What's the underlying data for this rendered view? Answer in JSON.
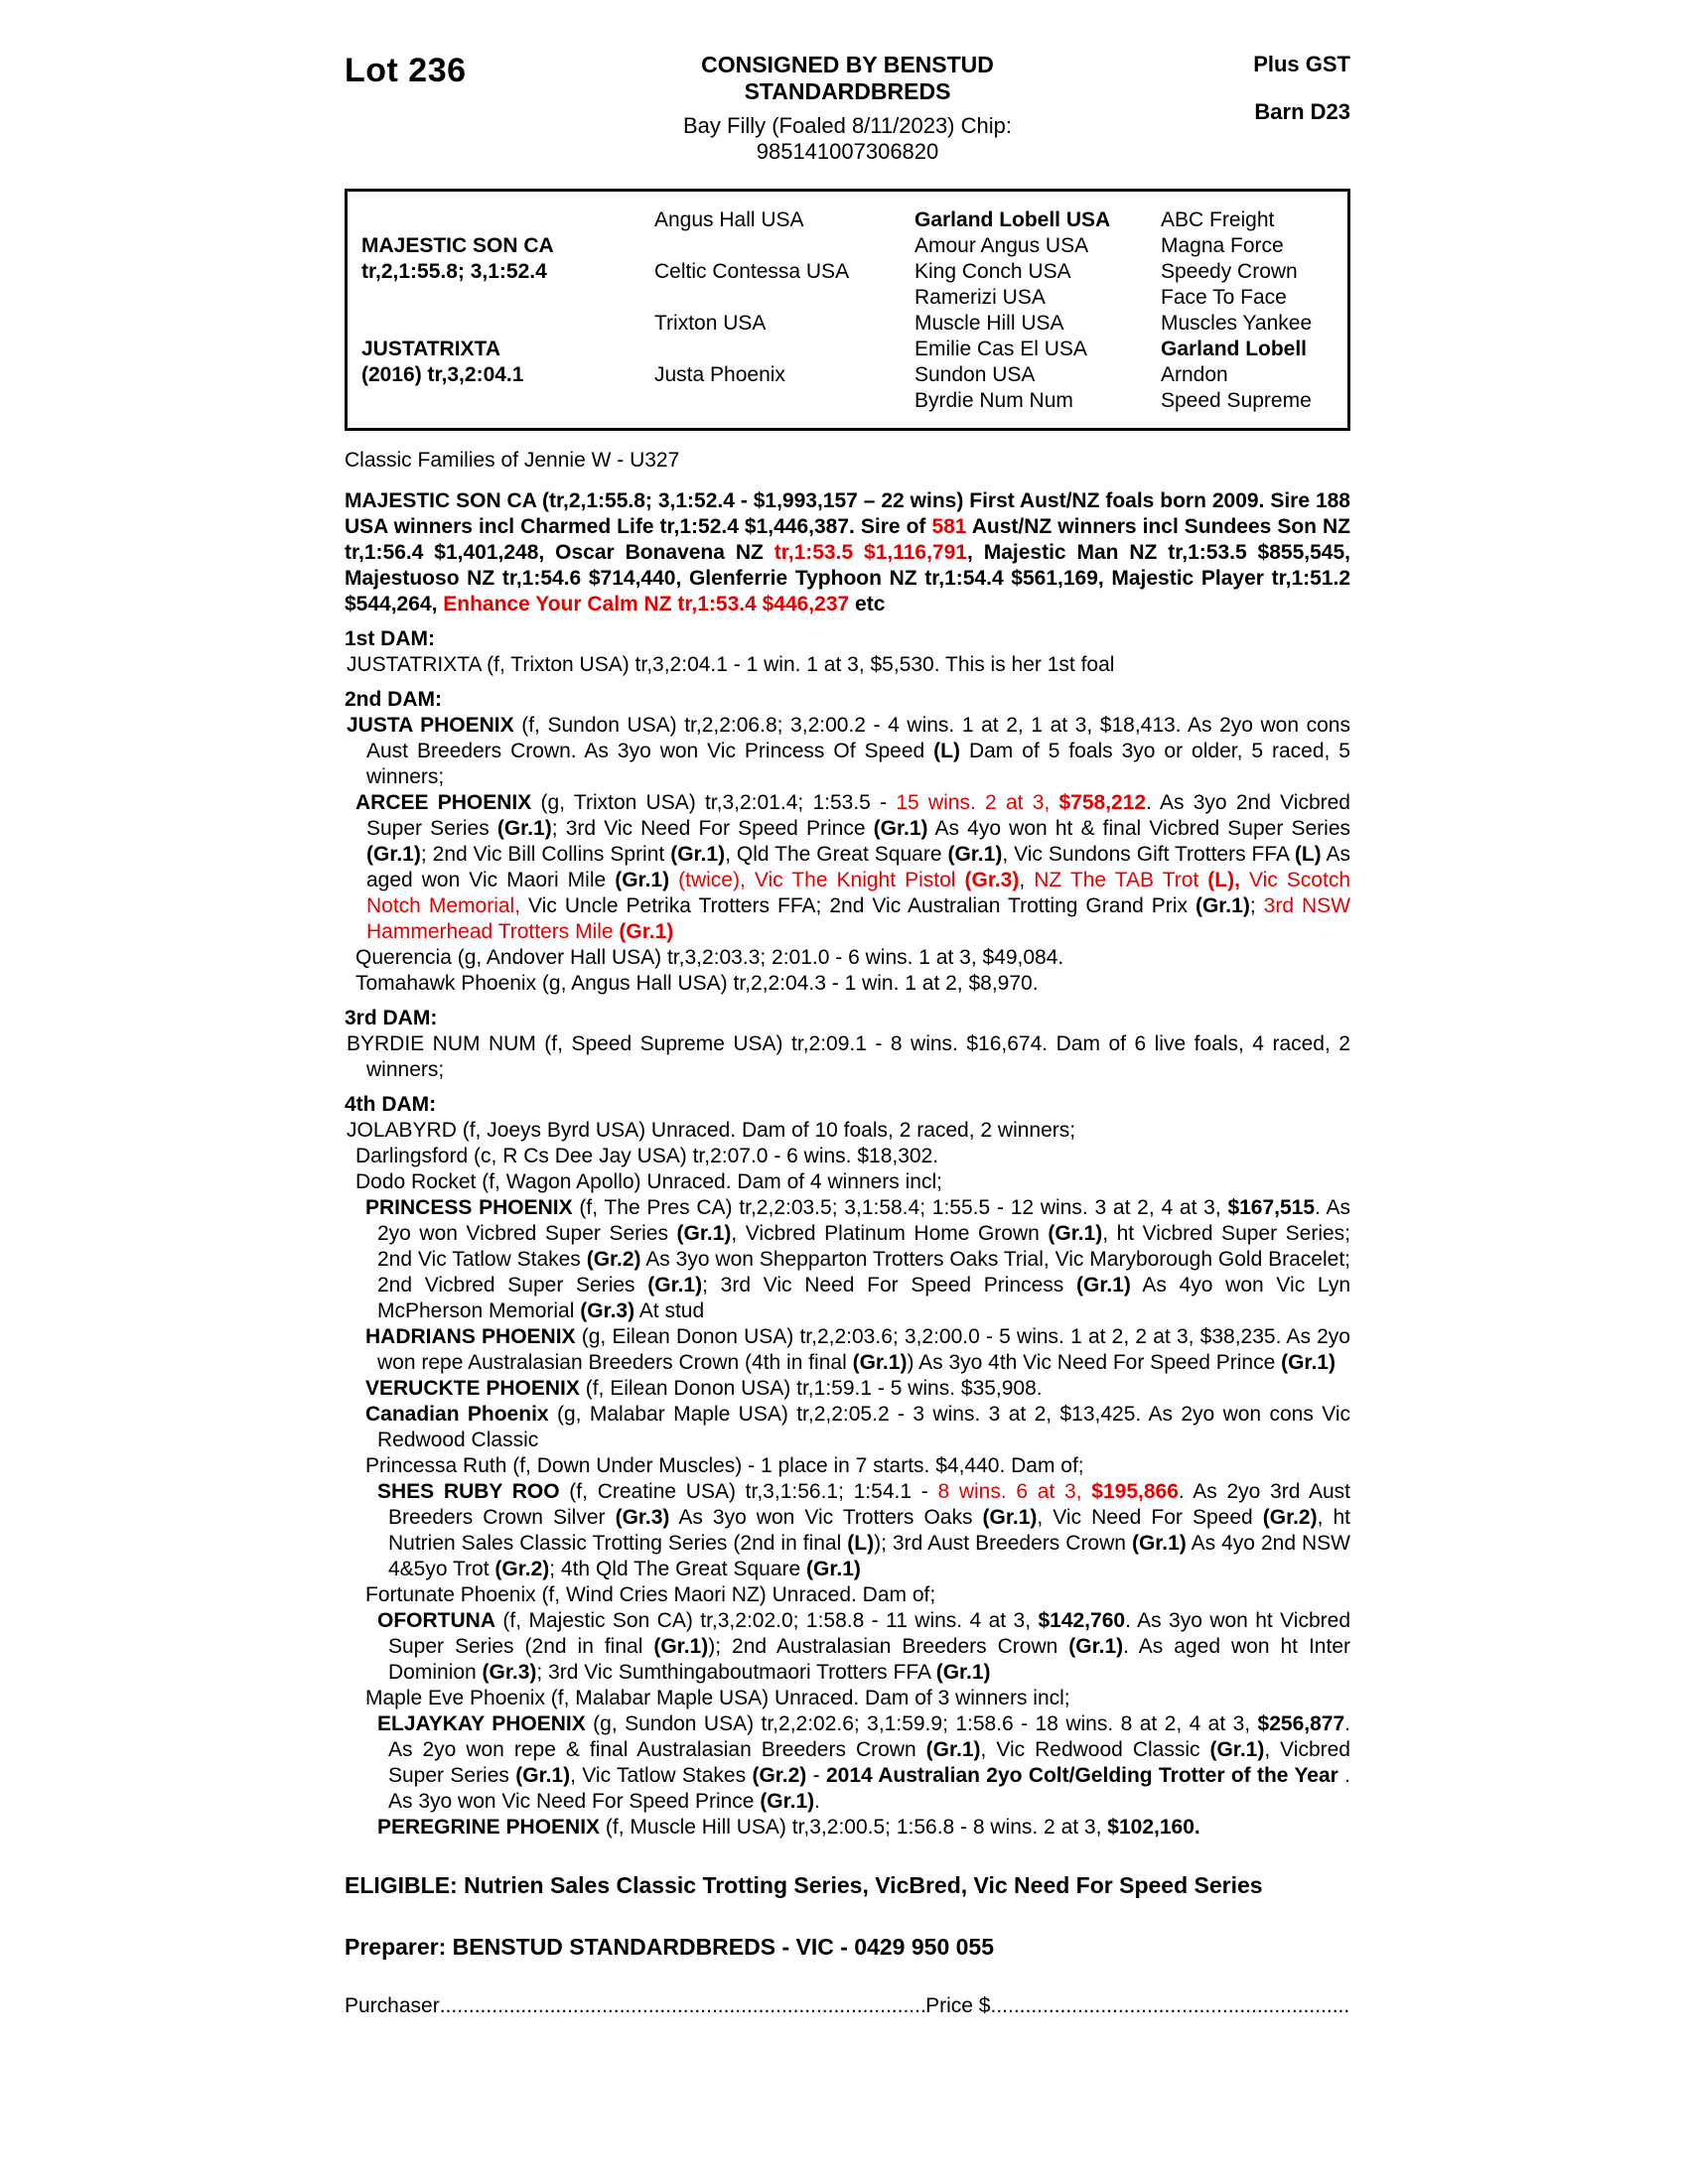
{
  "colors": {
    "red": "#e60000"
  },
  "header": {
    "lot": "Lot 236",
    "consigned": "CONSIGNED BY BENSTUD STANDARDBREDS",
    "foal_line": "Bay Filly (Foaled 8/11/2023) Chip: 985141007306820",
    "plus_gst": "Plus GST",
    "barn": "Barn D23"
  },
  "pedigree": {
    "sire": {
      "name": "MAJESTIC SON CA",
      "record": "tr,2,1:55.8; 3,1:52.4"
    },
    "dam": {
      "name": "JUSTATRIXTA",
      "record": "(2016) tr,3,2:04.1"
    },
    "gen2": [
      "Angus Hall USA",
      "Celtic Contessa USA",
      "Trixton USA",
      "Justa Phoenix"
    ],
    "gen3": [
      "Garland Lobell USA",
      "Amour Angus USA",
      "King Conch USA",
      "Ramerizi USA",
      "Muscle Hill USA",
      "Emilie Cas El USA",
      "Sundon USA",
      "Byrdie Num Num"
    ],
    "gen4": [
      "ABC Freight",
      "Magna Force",
      "Speedy Crown",
      "Face To Face",
      "Muscles Yankee",
      "Garland Lobell",
      "Arndon",
      "Speed Supreme"
    ]
  },
  "family_line": "Classic Families of Jennie W - U327",
  "paragraphs": [
    {
      "name": "para-majestic-son",
      "spans": [
        {
          "t": "MAJESTIC SON CA (tr,2,1:55.8; 3,1:52.4 - $1,993,157 – 22 wins) First Aust/NZ foals born 2009. Sire 188 USA winners incl Charmed Life tr,1:52.4 $1,446,387. Sire of ",
          "b": true
        },
        {
          "t": "581",
          "b": true,
          "r": true
        },
        {
          "t": " Aust/NZ winners incl Sundees Son NZ tr,1:56.4 $1,401,248, Oscar Bonavena NZ ",
          "b": true
        },
        {
          "t": "tr,1:53.5 $1,116,791",
          "b": true,
          "r": true
        },
        {
          "t": ", Majestic Man NZ tr,1:53.5 $855,545, Majestuoso NZ tr,1:54.6 $714,440, Glenferrie Typhoon NZ tr,1:54.4 $561,169, Majestic Player tr,1:51.2 $544,264, ",
          "b": true
        },
        {
          "t": "Enhance Your Calm NZ tr,1:53.4 $446,237",
          "b": true,
          "r": true
        },
        {
          "t": " etc",
          "b": true
        }
      ]
    },
    {
      "name": "heading-1st-dam",
      "spans": [
        {
          "t": "1st DAM:",
          "b": true
        }
      ]
    },
    {
      "name": "para-justatrixta",
      "spans": [
        {
          "t": "JUSTATRIXTA (f, Trixton USA) tr,3,2:04.1 - 1 win. 1 at 3, $5,530. This is her 1st foal"
        }
      ]
    },
    {
      "name": "heading-2nd-dam",
      "spans": [
        {
          "t": "2nd DAM:",
          "b": true
        }
      ]
    },
    {
      "name": "para-justa-phoenix",
      "spans": [
        {
          "t": "JUSTA PHOENIX",
          "b": true
        },
        {
          "t": " (f, Sundon USA) tr,2,2:06.8; 3,2:00.2 - 4 wins. 1 at 2, 1 at 3, $18,413. As 2yo won cons Aust Breeders Crown. As 3yo won Vic Princess Of Speed "
        },
        {
          "t": "(L)",
          "b": true
        },
        {
          "t": " Dam of 5 foals 3yo or older, 5 raced, 5 winners;"
        }
      ]
    },
    {
      "name": "para-arcee-phoenix",
      "spans": [
        {
          "t": "ARCEE PHOENIX",
          "b": true
        },
        {
          "t": " (g, Trixton USA) tr,3,2:01.4; 1:53.5 - "
        },
        {
          "t": "15 wins. 2 at 3, ",
          "r": true
        },
        {
          "t": "$758,212",
          "b": true,
          "r": true
        },
        {
          "t": ". As 3yo 2nd Vicbred Super Series "
        },
        {
          "t": "(Gr.1)",
          "b": true
        },
        {
          "t": "; 3rd Vic Need For Speed Prince "
        },
        {
          "t": "(Gr.1)",
          "b": true
        },
        {
          "t": " As 4yo won ht & final Vicbred Super Series "
        },
        {
          "t": "(Gr.1)",
          "b": true
        },
        {
          "t": "; 2nd Vic Bill Collins Sprint "
        },
        {
          "t": "(Gr.1)",
          "b": true
        },
        {
          "t": ", Qld The Great Square "
        },
        {
          "t": "(Gr.1)",
          "b": true
        },
        {
          "t": ", Vic Sundons Gift Trotters FFA "
        },
        {
          "t": "(L)",
          "b": true
        },
        {
          "t": " As aged won Vic Maori Mile "
        },
        {
          "t": "(Gr.1)",
          "b": true
        },
        {
          "t": " "
        },
        {
          "t": "(twice),",
          "r": true
        },
        {
          "t": " "
        },
        {
          "t": "Vic The Knight Pistol ",
          "r": true
        },
        {
          "t": "(Gr.3)",
          "b": true,
          "r": true
        },
        {
          "t": ", "
        },
        {
          "t": "NZ The TAB Trot ",
          "r": true
        },
        {
          "t": "(L),",
          "b": true,
          "r": true
        },
        {
          "t": " "
        },
        {
          "t": "Vic Scotch Notch Memorial,",
          "r": true
        },
        {
          "t": " Vic Uncle Petrika Trotters FFA; 2nd Vic Australian Trotting Grand Prix "
        },
        {
          "t": "(Gr.1)",
          "b": true
        },
        {
          "t": "; "
        },
        {
          "t": "3rd NSW Hammerhead Trotters Mile ",
          "r": true
        },
        {
          "t": "(Gr.1)",
          "b": true,
          "r": true
        }
      ]
    },
    {
      "name": "para-querencia",
      "spans": [
        {
          "t": "Querencia (g, Andover Hall USA) tr,3,2:03.3; 2:01.0 - 6 wins. 1 at 3, $49,084."
        }
      ]
    },
    {
      "name": "para-tomahawk-phoenix",
      "spans": [
        {
          "t": "Tomahawk Phoenix (g, Angus Hall USA) tr,2,2:04.3 - 1 win. 1 at 2, $8,970."
        }
      ]
    },
    {
      "name": "heading-3rd-dam",
      "spans": [
        {
          "t": "3rd DAM:",
          "b": true
        }
      ]
    },
    {
      "name": "para-byrdie-num-num",
      "spans": [
        {
          "t": "BYRDIE NUM NUM (f, Speed Supreme USA) tr,2:09.1 - 8 wins. $16,674. Dam of 6 live foals, 4 raced, 2 winners;"
        }
      ]
    },
    {
      "name": "heading-4th-dam",
      "spans": [
        {
          "t": "4th DAM:",
          "b": true
        }
      ]
    },
    {
      "name": "para-jolabyrd",
      "spans": [
        {
          "t": "JOLABYRD (f, Joeys Byrd USA) Unraced. Dam of 10 foals, 2 raced, 2 winners;"
        }
      ]
    },
    {
      "name": "para-darlingsford",
      "spans": [
        {
          "t": "Darlingsford (c, R Cs Dee Jay USA) tr,2:07.0 - 6 wins. $18,302."
        }
      ]
    },
    {
      "name": "para-dodo-rocket",
      "spans": [
        {
          "t": "Dodo Rocket (f, Wagon Apollo) Unraced. Dam of 4 winners incl;"
        }
      ]
    },
    {
      "name": "para-princess-phoenix",
      "spans": [
        {
          "t": "PRINCESS PHOENIX",
          "b": true
        },
        {
          "t": " (f, The Pres CA) tr,2,2:03.5; 3,1:58.4; 1:55.5 - 12 wins. 3 at 2, 4 at 3, "
        },
        {
          "t": "$167,515",
          "b": true
        },
        {
          "t": ". As 2yo won Vicbred Super Series "
        },
        {
          "t": "(Gr.1)",
          "b": true
        },
        {
          "t": ", Vicbred Platinum Home Grown "
        },
        {
          "t": "(Gr.1)",
          "b": true
        },
        {
          "t": ", ht Vicbred Super Series; 2nd Vic Tatlow Stakes "
        },
        {
          "t": "(Gr.2)",
          "b": true
        },
        {
          "t": " As 3yo won Shepparton Trotters Oaks Trial, Vic Maryborough Gold Bracelet; 2nd Vicbred Super Series "
        },
        {
          "t": "(Gr.1)",
          "b": true
        },
        {
          "t": "; 3rd Vic Need For Speed Princess "
        },
        {
          "t": "(Gr.1)",
          "b": true
        },
        {
          "t": " As 4yo won Vic Lyn McPherson Memorial "
        },
        {
          "t": "(Gr.3)",
          "b": true
        },
        {
          "t": " At stud"
        }
      ]
    },
    {
      "name": "para-hadrians-phoenix",
      "spans": [
        {
          "t": "HADRIANS PHOENIX",
          "b": true
        },
        {
          "t": " (g, Eilean Donon USA) tr,2,2:03.6; 3,2:00.0 - 5 wins. 1 at 2, 2 at 3, $38,235. As 2yo won repe Australasian Breeders Crown (4th in final "
        },
        {
          "t": "(Gr.1)",
          "b": true
        },
        {
          "t": ") As 3yo 4th Vic Need For Speed Prince "
        },
        {
          "t": "(Gr.1)",
          "b": true
        }
      ]
    },
    {
      "name": "para-veruckte-phoenix",
      "spans": [
        {
          "t": "VERUCKTE PHOENIX",
          "b": true
        },
        {
          "t": " (f, Eilean Donon USA) tr,1:59.1 - 5 wins. $35,908."
        }
      ]
    },
    {
      "name": "para-canadian-phoenix",
      "spans": [
        {
          "t": "Canadian Phoenix",
          "b": true
        },
        {
          "t": " (g, Malabar Maple USA) tr,2,2:05.2 - 3 wins. 3 at 2, $13,425. As 2yo won cons Vic Redwood Classic"
        }
      ]
    },
    {
      "name": "para-princessa-ruth",
      "spans": [
        {
          "t": "Princessa Ruth (f, Down Under Muscles) - 1 place in 7 starts. $4,440. Dam of;"
        }
      ]
    },
    {
      "name": "para-shes-ruby-roo",
      "spans": [
        {
          "t": "SHES RUBY ROO",
          "b": true
        },
        {
          "t": " (f, Creatine USA) tr,3,1:56.1; 1:54.1 - "
        },
        {
          "t": "8 wins. 6 at 3, ",
          "r": true
        },
        {
          "t": "$195,866",
          "b": true,
          "r": true
        },
        {
          "t": ". As 2yo 3rd Aust Breeders Crown Silver "
        },
        {
          "t": "(Gr.3)",
          "b": true
        },
        {
          "t": " As 3yo won Vic Trotters Oaks "
        },
        {
          "t": "(Gr.1)",
          "b": true
        },
        {
          "t": ", Vic Need For Speed "
        },
        {
          "t": "(Gr.2)",
          "b": true
        },
        {
          "t": ", ht Nutrien Sales Classic Trotting Series (2nd in final "
        },
        {
          "t": "(L)",
          "b": true
        },
        {
          "t": "); 3rd Aust Breeders Crown "
        },
        {
          "t": "(Gr.1)",
          "b": true
        },
        {
          "t": " As 4yo 2nd NSW 4&5yo Trot "
        },
        {
          "t": "(Gr.2)",
          "b": true
        },
        {
          "t": "; 4th Qld The Great Square "
        },
        {
          "t": "(Gr.1)",
          "b": true
        }
      ]
    },
    {
      "name": "para-fortunate-phoenix",
      "spans": [
        {
          "t": "Fortunate Phoenix (f, Wind Cries Maori NZ) Unraced. Dam of;"
        }
      ]
    },
    {
      "name": "para-ofortuna",
      "spans": [
        {
          "t": "OFORTUNA",
          "b": true
        },
        {
          "t": " (f, Majestic Son CA) tr,3,2:02.0; 1:58.8 - 11 wins. 4 at 3, "
        },
        {
          "t": "$142,760",
          "b": true
        },
        {
          "t": ". As 3yo won ht Vicbred Super Series (2nd in final "
        },
        {
          "t": "(Gr.1)",
          "b": true
        },
        {
          "t": "); 2nd Australasian Breeders Crown "
        },
        {
          "t": "(Gr.1)",
          "b": true
        },
        {
          "t": ". As aged won ht Inter Dominion "
        },
        {
          "t": "(Gr.3)",
          "b": true
        },
        {
          "t": "; 3rd Vic Sumthingaboutmaori Trotters FFA "
        },
        {
          "t": "(Gr.1)",
          "b": true
        }
      ]
    },
    {
      "name": "para-maple-eve-phoenix",
      "spans": [
        {
          "t": "Maple Eve Phoenix (f, Malabar Maple USA) Unraced. Dam of 3 winners incl;"
        }
      ]
    },
    {
      "name": "para-eljaykay-phoenix",
      "spans": [
        {
          "t": "ELJAYKAY PHOENIX",
          "b": true
        },
        {
          "t": " (g, Sundon USA) tr,2,2:02.6; 3,1:59.9; 1:58.6 - 18 wins. 8 at 2, 4 at 3, "
        },
        {
          "t": "$256,877",
          "b": true
        },
        {
          "t": ". As 2yo won repe & final Australasian Breeders Crown "
        },
        {
          "t": "(Gr.1)",
          "b": true
        },
        {
          "t": ", Vic Redwood Classic "
        },
        {
          "t": "(Gr.1)",
          "b": true
        },
        {
          "t": ", Vicbred Super Series "
        },
        {
          "t": "(Gr.1)",
          "b": true
        },
        {
          "t": ", Vic Tatlow Stakes "
        },
        {
          "t": "(Gr.2)",
          "b": true
        },
        {
          "t": " - "
        },
        {
          "t": "2014 Australian 2yo Colt/Gelding Trotter of the Year",
          "b": true
        },
        {
          "t": " . As 3yo won Vic Need For Speed Prince "
        },
        {
          "t": "(Gr.1)",
          "b": true
        },
        {
          "t": "."
        }
      ]
    },
    {
      "name": "para-peregrine-phoenix",
      "spans": [
        {
          "t": "PEREGRINE PHOENIX",
          "b": true
        },
        {
          "t": " (f, Muscle Hill USA) tr,3,2:00.5; 1:56.8 - 8 wins. 2 at 3, "
        },
        {
          "t": "$102,160.",
          "b": true
        }
      ]
    }
  ],
  "eligible": "ELIGIBLE: Nutrien Sales Classic Trotting Series, VicBred, Vic Need For Speed Series",
  "preparer": "Preparer: BENSTUD STANDARDBREDS - VIC - 0429 950 055",
  "purchaser": {
    "label": "Purchaser",
    "dots": "...................................................................................................................................................................",
    "price_label": "Price $",
    "dots2": "..................................................................................................."
  }
}
